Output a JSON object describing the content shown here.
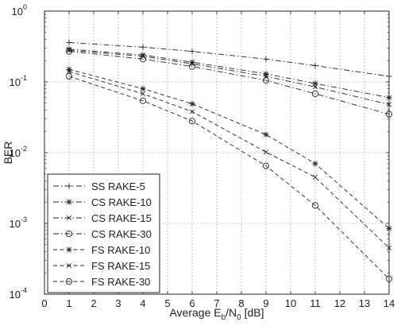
{
  "chart_data": {
    "type": "line",
    "xlabel": {
      "prefix": "Average E",
      "sub1": "b",
      "mid": "/N",
      "sub2": "0",
      "suffix": " [dB]"
    },
    "ylabel": "BER",
    "xlim": [
      0,
      14
    ],
    "ylim": [
      0.0001,
      1
    ],
    "yscale": "log",
    "grid": true,
    "legend_position": "bottom-left",
    "x_ticks": [
      0,
      1,
      2,
      3,
      4,
      5,
      6,
      7,
      8,
      9,
      10,
      11,
      12,
      13,
      14
    ],
    "y_ticks": [
      {
        "value": 1,
        "base": "10",
        "exp": "0"
      },
      {
        "value": 0.1,
        "base": "10",
        "exp": "-1"
      },
      {
        "value": 0.01,
        "base": "10",
        "exp": "-2"
      },
      {
        "value": 0.001,
        "base": "10",
        "exp": "-3"
      },
      {
        "value": 0.0001,
        "base": "10",
        "exp": "-4"
      }
    ],
    "series": [
      {
        "name": "SS RAKE-5",
        "marker": "plus",
        "dash": "dashdot",
        "x": [
          1,
          4,
          6,
          9,
          11,
          14
        ],
        "y": [
          0.36,
          0.31,
          0.27,
          0.21,
          0.17,
          0.12
        ]
      },
      {
        "name": "CS RAKE-10",
        "marker": "star",
        "dash": "dashdot",
        "x": [
          1,
          4,
          6,
          9,
          11,
          14
        ],
        "y": [
          0.29,
          0.24,
          0.19,
          0.13,
          0.095,
          0.06
        ]
      },
      {
        "name": "CS RAKE-15",
        "marker": "x",
        "dash": "dashdot",
        "x": [
          1,
          4,
          6,
          9,
          11,
          14
        ],
        "y": [
          0.28,
          0.23,
          0.18,
          0.12,
          0.085,
          0.048
        ]
      },
      {
        "name": "CS RAKE-30",
        "marker": "circle",
        "dash": "dashdot",
        "x": [
          1,
          4,
          6,
          9,
          11,
          14
        ],
        "y": [
          0.27,
          0.21,
          0.165,
          0.105,
          0.068,
          0.035
        ]
      },
      {
        "name": "FS RAKE-10",
        "marker": "star",
        "dash": "dashed",
        "x": [
          1,
          4,
          6,
          9,
          11,
          14
        ],
        "y": [
          0.15,
          0.08,
          0.049,
          0.018,
          0.007,
          0.00085
        ]
      },
      {
        "name": "FS RAKE-15",
        "marker": "x",
        "dash": "dashed",
        "x": [
          1,
          4,
          6,
          9,
          11,
          14
        ],
        "y": [
          0.14,
          0.068,
          0.038,
          0.0102,
          0.0045,
          0.00045
        ]
      },
      {
        "name": "FS RAKE-30",
        "marker": "circle",
        "dash": "dashed",
        "x": [
          1,
          4,
          6,
          9,
          11,
          14
        ],
        "y": [
          0.12,
          0.054,
          0.028,
          0.0065,
          0.0018,
          0.000165
        ]
      }
    ]
  }
}
